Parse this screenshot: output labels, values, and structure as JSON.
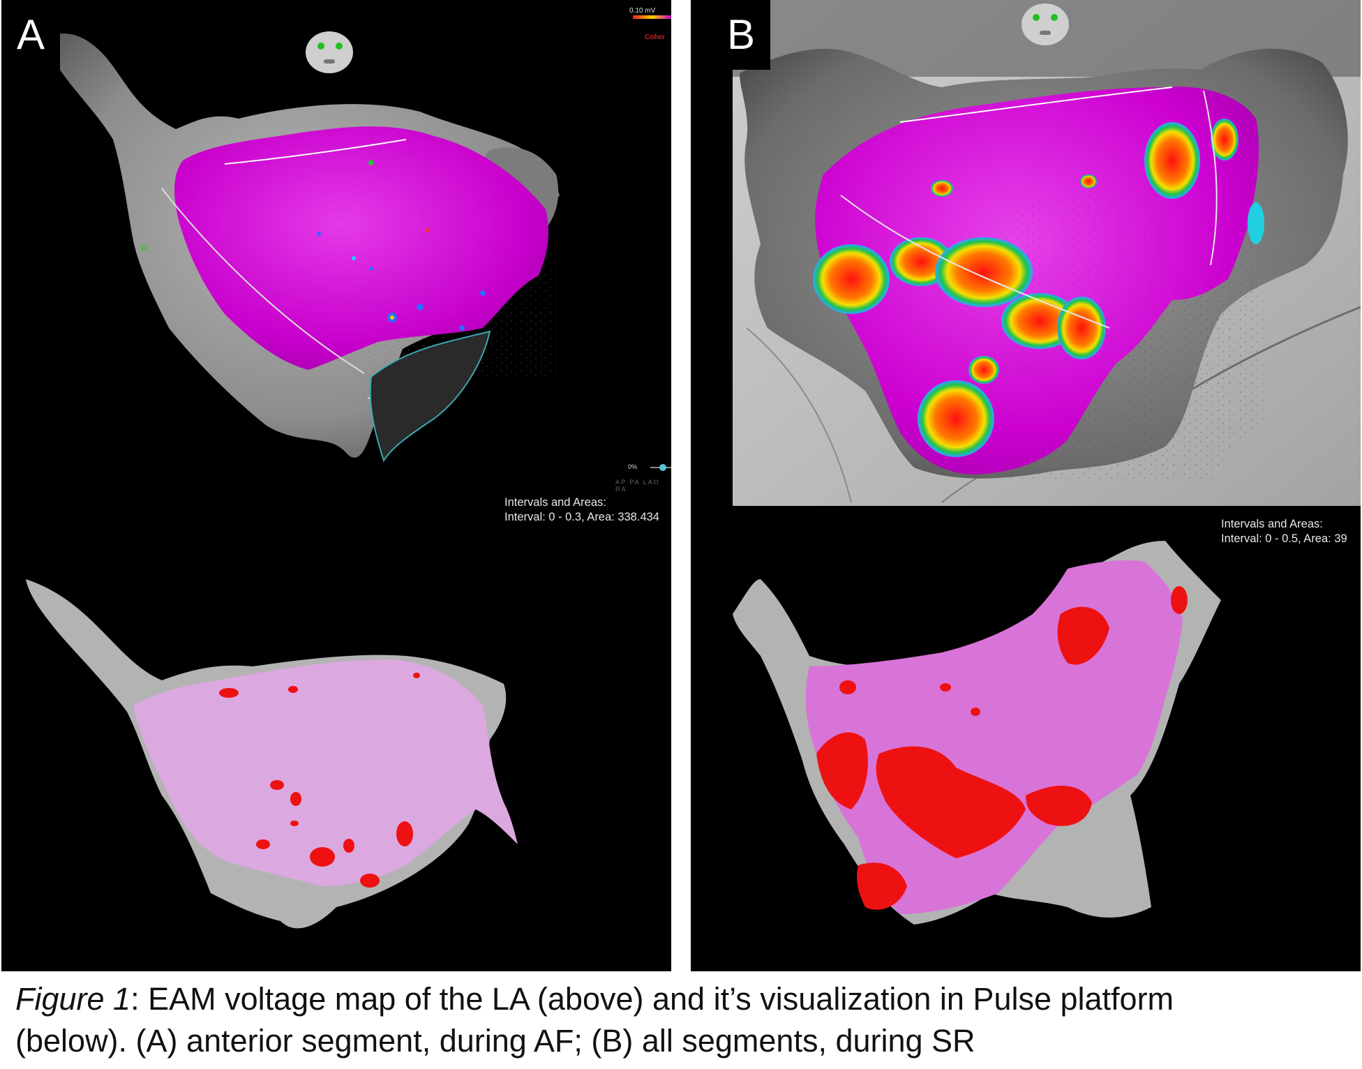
{
  "panels": [
    {
      "letter": "A",
      "scale_label": "0.10 mV",
      "scale_label2": "Coher",
      "slider_label": "0%",
      "view_label": "AP  PA  LAO  RA",
      "intervals_title": "Intervals and Areas:",
      "intervals_value": "Interval: 0 - 0.3, Area: 338.434"
    },
    {
      "letter": "B",
      "intervals_title": "Intervals and Areas:",
      "intervals_value": "Interval: 0 - 0.5, Area: 39"
    }
  ],
  "caption": {
    "figure_label": "Figure 1",
    "text_line1": ": EAM voltage map of the LA (above) and it’s visualization in Pulse platform",
    "text_line2": "(below). (A) anterior segment, during AF; (B) all segments, during SR"
  },
  "colors": {
    "background": "#000000",
    "anatomy_gray": "#8a8a8a",
    "voltage_magenta": "#d400d8",
    "pulse_pink": "#dca8e0",
    "pulse_pink_b": "#d873d8",
    "scar_red": "#ee1111"
  }
}
